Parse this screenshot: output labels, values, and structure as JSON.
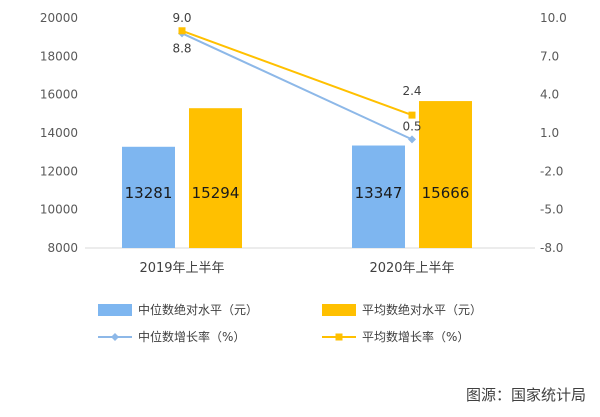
{
  "chart_data": {
    "type": "bar",
    "categories": [
      "2019年上半年",
      "2020年上半年"
    ],
    "series": [
      {
        "name": "中位数绝对水平（元）",
        "kind": "bar",
        "axis": "left",
        "color": "#7EB6F0",
        "values": [
          13281,
          13347
        ]
      },
      {
        "name": "平均数绝对水平（元）",
        "kind": "bar",
        "axis": "left",
        "color": "#FFC000",
        "values": [
          15294,
          15666
        ]
      },
      {
        "name": "中位数增长率（%）",
        "kind": "line",
        "axis": "right",
        "color": "#8DB8E8",
        "values": [
          8.8,
          0.5
        ]
      },
      {
        "name": "平均数增长率（%）",
        "kind": "line",
        "axis": "right",
        "color": "#FFC000",
        "values": [
          9.0,
          2.4
        ]
      }
    ],
    "ylim_left": [
      8000,
      20000
    ],
    "yticks_left": [
      "8000",
      "10000",
      "12000",
      "14000",
      "16000",
      "18000",
      "20000"
    ],
    "ylim_right": [
      -8.0,
      10.0
    ],
    "yticks_right": [
      "-8.0",
      "-5.0",
      "-2.0",
      "1.0",
      "4.0",
      "7.0",
      "10.0"
    ],
    "bar_value_labels": [
      [
        "13281",
        "13347"
      ],
      [
        "15294",
        "15666"
      ]
    ],
    "line_value_labels": [
      [
        "8.8",
        "0.5"
      ],
      [
        "9.0",
        "2.4"
      ]
    ],
    "legend_position": "bottom",
    "grid": false
  },
  "source_text": "图源：国家统计局"
}
